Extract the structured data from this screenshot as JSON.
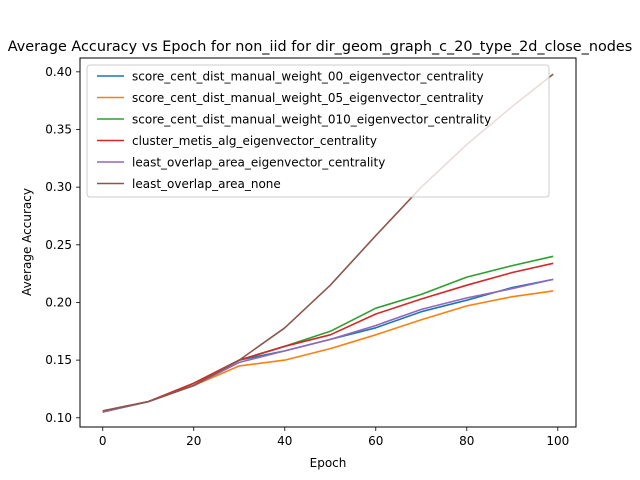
{
  "chart_data": {
    "type": "line",
    "title": "Average Accuracy vs Epoch for non_iid for dir_geom_graph_c_20_type_2d_close_nodes",
    "xlabel": "Epoch",
    "ylabel": "Average Accuracy",
    "xlim": [
      -5,
      104
    ],
    "ylim": [
      0.092,
      0.412
    ],
    "xticks": [
      0,
      20,
      40,
      60,
      80,
      100
    ],
    "yticks": [
      0.1,
      0.15,
      0.2,
      0.25,
      0.3,
      0.35,
      0.4
    ],
    "grid": false,
    "legend_position": "top-left",
    "x": [
      0,
      10,
      20,
      30,
      40,
      50,
      60,
      70,
      80,
      90,
      99
    ],
    "series": [
      {
        "name": "score_cent_dist_manual_weight_00_eigenvector_centrality",
        "color": "#1f77b4",
        "values": [
          0.105,
          0.114,
          0.128,
          0.15,
          0.158,
          0.168,
          0.178,
          0.192,
          0.202,
          0.213,
          0.22
        ]
      },
      {
        "name": "score_cent_dist_manual_weight_05_eigenvector_centrality",
        "color": "#ff7f0e",
        "values": [
          0.105,
          0.114,
          0.128,
          0.145,
          0.15,
          0.16,
          0.172,
          0.185,
          0.197,
          0.205,
          0.21
        ]
      },
      {
        "name": "score_cent_dist_manual_weight_010_eigenvector_centrality",
        "color": "#2ca02c",
        "values": [
          0.105,
          0.114,
          0.13,
          0.15,
          0.162,
          0.175,
          0.195,
          0.207,
          0.222,
          0.232,
          0.24
        ]
      },
      {
        "name": "cluster_metis_alg_eigenvector_centrality",
        "color": "#d62728",
        "values": [
          0.106,
          0.114,
          0.13,
          0.15,
          0.162,
          0.172,
          0.19,
          0.203,
          0.215,
          0.226,
          0.234
        ]
      },
      {
        "name": "least_overlap_area_eigenvector_centrality",
        "color": "#9467bd",
        "values": [
          0.105,
          0.114,
          0.128,
          0.148,
          0.158,
          0.168,
          0.18,
          0.194,
          0.204,
          0.212,
          0.22
        ]
      },
      {
        "name": "least_overlap_area_none",
        "color": "#8c564b",
        "values": [
          0.106,
          0.114,
          0.128,
          0.15,
          0.178,
          0.215,
          0.258,
          0.3,
          0.337,
          0.37,
          0.398
        ]
      }
    ]
  }
}
